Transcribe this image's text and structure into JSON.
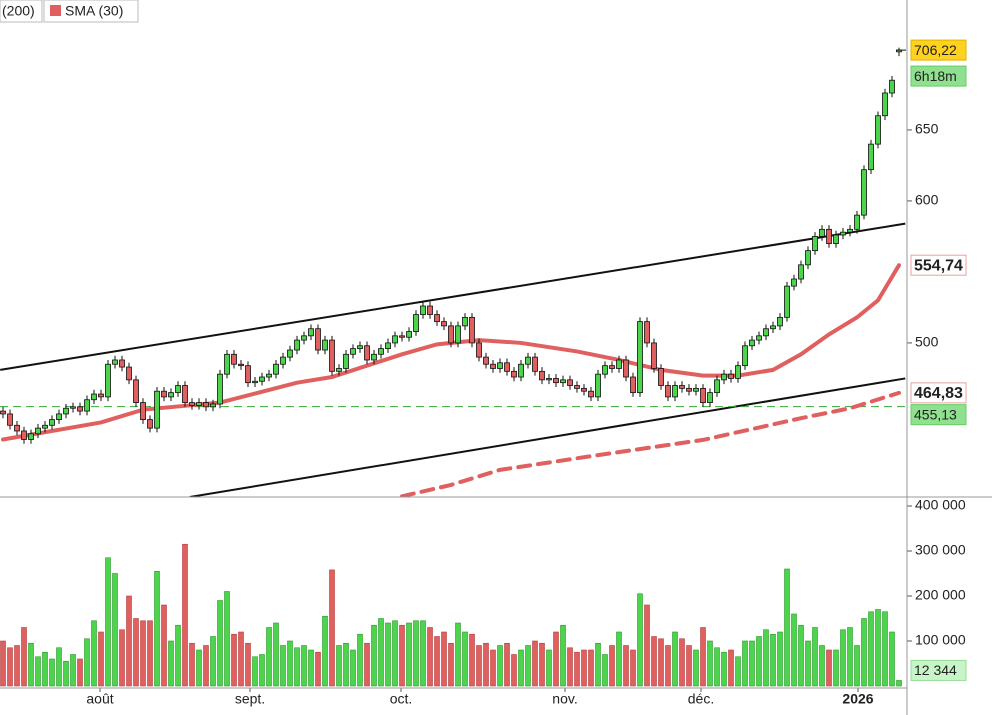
{
  "chart_data": {
    "type": "candlestick",
    "legend": [
      "(200)",
      "SMA (30)"
    ],
    "up_color": "#4cd44c",
    "down_color": "#e06060",
    "open": [
      452,
      450,
      442,
      438,
      432,
      436,
      440,
      442,
      446,
      450,
      454,
      455,
      452,
      460,
      464,
      462,
      485,
      488,
      483,
      474,
      458,
      446,
      440,
      466,
      462,
      465,
      470,
      458,
      456,
      458,
      455,
      457,
      478,
      492,
      485,
      484,
      472,
      473,
      476,
      478,
      485,
      490,
      495,
      502,
      505,
      510,
      495,
      502,
      480,
      482,
      492,
      496,
      498,
      488,
      492,
      496,
      500,
      505,
      504,
      508,
      520,
      526,
      520,
      515,
      512,
      500,
      512,
      518,
      500,
      490,
      485,
      482,
      486,
      480,
      476,
      485,
      490,
      480,
      474,
      475,
      472,
      474,
      470,
      468,
      466,
      462,
      478,
      484,
      482,
      488,
      476,
      465,
      515,
      500,
      482,
      470,
      462,
      470,
      468,
      466,
      468,
      458,
      465,
      474,
      478,
      475,
      484,
      498,
      502,
      505,
      510,
      512,
      518,
      540,
      545,
      555,
      565,
      575,
      580,
      570,
      576,
      578,
      580,
      590,
      622,
      640,
      660,
      676,
      705
    ],
    "high": [
      455,
      453,
      445,
      441,
      439,
      443,
      445,
      449,
      453,
      457,
      458,
      458,
      463,
      467,
      467,
      488,
      491,
      491,
      486,
      477,
      461,
      449,
      469,
      469,
      468,
      473,
      473,
      461,
      461,
      461,
      460,
      481,
      495,
      495,
      488,
      487,
      476,
      479,
      481,
      488,
      493,
      498,
      505,
      508,
      513,
      513,
      505,
      505,
      485,
      495,
      499,
      501,
      501,
      495,
      499,
      503,
      508,
      508,
      511,
      523,
      529,
      529,
      523,
      518,
      515,
      515,
      521,
      521,
      503,
      493,
      488,
      489,
      489,
      483,
      488,
      493,
      493,
      483,
      478,
      478,
      477,
      477,
      473,
      471,
      469,
      481,
      487,
      487,
      491,
      491,
      479,
      518,
      518,
      503,
      485,
      473,
      473,
      473,
      471,
      471,
      471,
      468,
      477,
      481,
      481,
      487,
      501,
      505,
      508,
      513,
      515,
      521,
      543,
      548,
      558,
      568,
      578,
      583,
      583,
      579,
      581,
      583,
      593,
      625,
      643,
      663,
      679,
      688,
      708
    ],
    "low": [
      447,
      439,
      435,
      429,
      429,
      433,
      437,
      439,
      443,
      447,
      451,
      449,
      449,
      457,
      459,
      459,
      482,
      480,
      471,
      455,
      443,
      437,
      437,
      459,
      459,
      462,
      455,
      453,
      453,
      452,
      452,
      454,
      475,
      482,
      481,
      469,
      469,
      470,
      473,
      475,
      482,
      487,
      492,
      499,
      502,
      492,
      492,
      477,
      477,
      479,
      489,
      493,
      485,
      485,
      489,
      493,
      497,
      501,
      501,
      505,
      517,
      517,
      512,
      509,
      497,
      497,
      509,
      497,
      487,
      482,
      479,
      479,
      477,
      473,
      473,
      482,
      477,
      471,
      471,
      469,
      469,
      467,
      465,
      463,
      459,
      459,
      475,
      479,
      479,
      473,
      462,
      462,
      497,
      479,
      467,
      459,
      459,
      465,
      463,
      463,
      455,
      455,
      462,
      471,
      472,
      472,
      481,
      495,
      499,
      502,
      507,
      509,
      515,
      537,
      542,
      552,
      562,
      572,
      567,
      567,
      573,
      575,
      577,
      587,
      619,
      637,
      657,
      673,
      702
    ],
    "close": [
      450,
      442,
      438,
      432,
      436,
      440,
      442,
      446,
      450,
      454,
      455,
      452,
      460,
      464,
      462,
      485,
      488,
      483,
      474,
      458,
      446,
      440,
      466,
      462,
      465,
      470,
      458,
      456,
      458,
      455,
      457,
      478,
      492,
      485,
      484,
      472,
      473,
      476,
      478,
      485,
      490,
      495,
      502,
      505,
      510,
      495,
      502,
      480,
      482,
      492,
      496,
      498,
      488,
      492,
      496,
      500,
      505,
      504,
      508,
      520,
      526,
      520,
      515,
      512,
      500,
      512,
      518,
      500,
      490,
      485,
      482,
      486,
      480,
      476,
      485,
      490,
      480,
      474,
      475,
      472,
      474,
      470,
      468,
      466,
      462,
      478,
      484,
      482,
      488,
      476,
      465,
      515,
      500,
      482,
      470,
      462,
      470,
      468,
      466,
      468,
      458,
      465,
      474,
      478,
      475,
      484,
      498,
      502,
      505,
      510,
      512,
      518,
      540,
      545,
      555,
      565,
      575,
      580,
      570,
      576,
      578,
      580,
      590,
      622,
      640,
      660,
      676,
      685,
      706.22
    ],
    "volume": [
      100000,
      85000,
      90000,
      130000,
      95000,
      65000,
      75000,
      60000,
      85000,
      55000,
      70000,
      60000,
      105000,
      145000,
      120000,
      285000,
      250000,
      125000,
      200000,
      150000,
      145000,
      145000,
      255000,
      180000,
      100000,
      135000,
      315000,
      95000,
      80000,
      90000,
      110000,
      190000,
      210000,
      115000,
      120000,
      95000,
      65000,
      70000,
      130000,
      140000,
      90000,
      100000,
      85000,
      90000,
      80000,
      75000,
      155000,
      258000,
      90000,
      95000,
      80000,
      115000,
      95000,
      135000,
      150000,
      140000,
      145000,
      135000,
      140000,
      145000,
      145000,
      130000,
      110000,
      120000,
      95000,
      140000,
      120000,
      115000,
      90000,
      95000,
      80000,
      90000,
      95000,
      70000,
      80000,
      90000,
      100000,
      95000,
      80000,
      120000,
      135000,
      85000,
      75000,
      80000,
      80000,
      95000,
      70000,
      90000,
      120000,
      90000,
      80000,
      205000,
      180000,
      110000,
      105000,
      90000,
      120000,
      105000,
      90000,
      80000,
      130000,
      100000,
      85000,
      75000,
      80000,
      65000,
      100000,
      100000,
      110000,
      125000,
      115000,
      120000,
      260000,
      160000,
      135000,
      100000,
      130000,
      90000,
      80000,
      80000,
      125000,
      130000,
      90000,
      150000,
      165000,
      170000,
      165000,
      120000,
      12344
    ],
    "series": [
      {
        "name": "SMA (30)",
        "color": "#e06060",
        "dashed": false,
        "x": [
          0,
          14,
          20,
          31,
          42,
          47,
          57,
          62,
          68,
          74,
          82,
          88,
          94,
          100,
          105,
          110,
          114,
          118,
          122,
          125,
          128
        ],
        "values": [
          432,
          444,
          453,
          458,
          472,
          476,
          492,
          499,
          502,
          500,
          494,
          488,
          481,
          477,
          477,
          481,
          492,
          506,
          518,
          530,
          554.74
        ],
        "last_label": {
          "value": 554.74,
          "label": "554,74"
        }
      },
      {
        "name": "(200)",
        "color": "#e06060",
        "dashed": true,
        "x": [
          57,
          64,
          71,
          85,
          100,
          114,
          121,
          128
        ],
        "values": [
          392,
          400,
          410.6,
          421,
          431.7,
          447,
          454,
          464.83
        ],
        "last_label": {
          "value": 464.83,
          "label": "464,83"
        }
      }
    ],
    "trendlines": [
      {
        "x": [
          -0.4,
          128.9
        ],
        "values": [
          481,
          584
        ]
      },
      {
        "x": [
          26.7,
          128.9
        ],
        "values": [
          391.5,
          475
        ]
      }
    ],
    "hline": {
      "value": 455.13,
      "label": "455,13",
      "color": "#3a3"
    },
    "last_price": {
      "value": 706.22,
      "label": "706,22"
    },
    "countdown": "6h18m",
    "last_volume": {
      "value": 12344,
      "label": "12 344"
    },
    "ylim": [
      391.5,
      741.5
    ],
    "yticks": [
      500,
      600,
      650
    ],
    "vylim": [
      0,
      420000
    ],
    "vyticks": [
      {
        "value": 100000,
        "label": "100 000"
      },
      {
        "value": 200000,
        "label": "200 000"
      },
      {
        "value": 300000,
        "label": "300 000"
      },
      {
        "value": 400000,
        "label": "400 000"
      }
    ],
    "months": [
      "août",
      "sept.",
      "oct.",
      "nov.",
      "déc.",
      "2026"
    ]
  }
}
